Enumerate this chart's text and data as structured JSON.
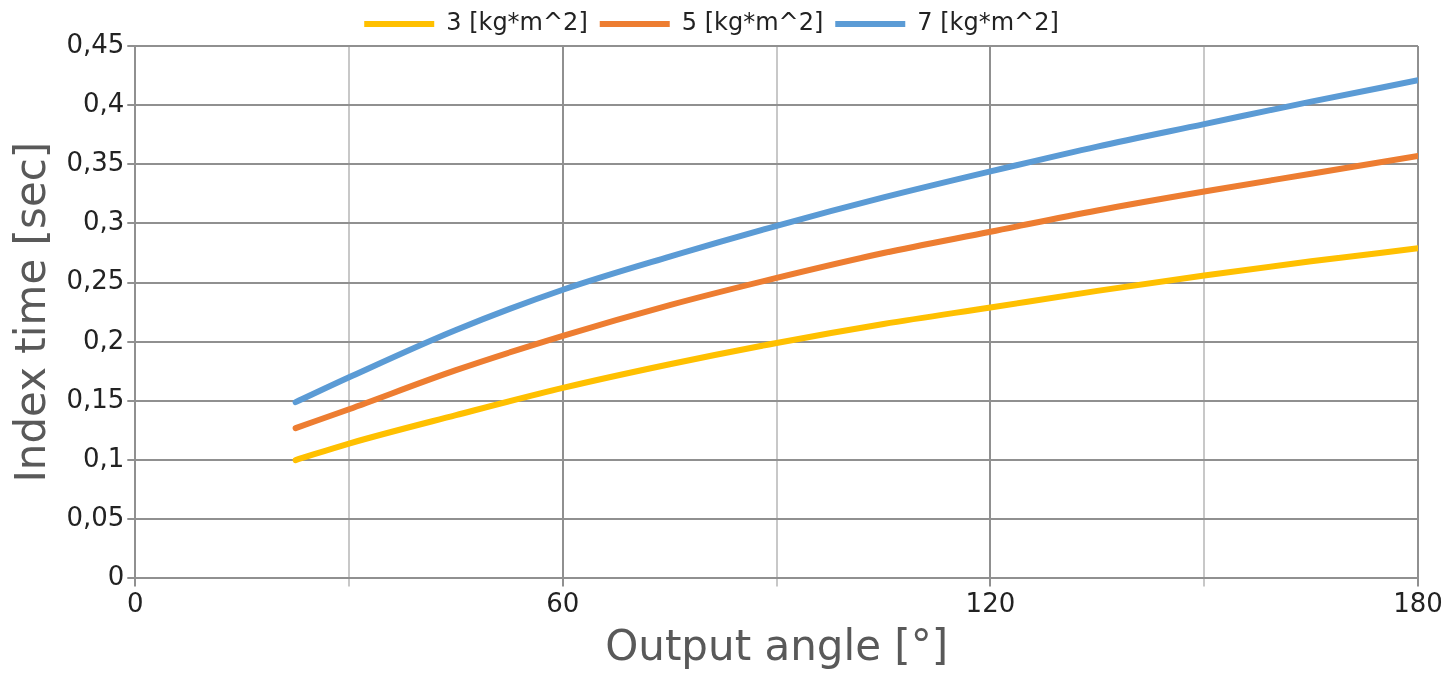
{
  "chart_data": {
    "type": "line",
    "xlabel": "Output angle [°]",
    "ylabel": "Index time [sec]",
    "x": [
      22.5,
      30,
      45,
      60,
      75,
      90,
      105,
      120,
      135,
      150,
      165,
      180
    ],
    "series": [
      {
        "name": "3 [kg*m^2]",
        "color": "#ffc000",
        "values": [
          0.1,
          0.114,
          0.138,
          0.161,
          0.181,
          0.199,
          0.215,
          0.229,
          0.243,
          0.256,
          0.268,
          0.279
        ]
      },
      {
        "name": "5 [kg*m^2]",
        "color": "#ed7d31",
        "values": [
          0.127,
          0.143,
          0.176,
          0.205,
          0.231,
          0.254,
          0.275,
          0.293,
          0.311,
          0.327,
          0.342,
          0.357
        ]
      },
      {
        "name": "7 [kg*m^2]",
        "color": "#5b9bd5",
        "values": [
          0.149,
          0.17,
          0.21,
          0.244,
          0.272,
          0.298,
          0.322,
          0.344,
          0.365,
          0.384,
          0.403,
          0.421
        ]
      }
    ],
    "xlim": [
      0,
      180
    ],
    "xticks": [
      0,
      {
        "value": 30,
        "label": null
      },
      60,
      {
        "value": 90,
        "label": null
      },
      120,
      {
        "value": 150,
        "label": null
      },
      180
    ],
    "ylim": [
      0,
      0.45
    ],
    "yticks": [
      0,
      {
        "value": 0.05,
        "label": "0,05"
      },
      {
        "value": 0.1,
        "label": "0,1"
      },
      {
        "value": 0.15,
        "label": "0,15"
      },
      {
        "value": 0.2,
        "label": "0,2"
      },
      {
        "value": 0.25,
        "label": "0,25"
      },
      {
        "value": 0.3,
        "label": "0,3"
      },
      {
        "value": 0.35,
        "label": "0,35"
      },
      {
        "value": 0.4,
        "label": "0,4"
      },
      {
        "value": 0.45,
        "label": "0,45"
      }
    ],
    "grid": true,
    "legend": "top",
    "marker": "none",
    "line_style": "solid"
  }
}
